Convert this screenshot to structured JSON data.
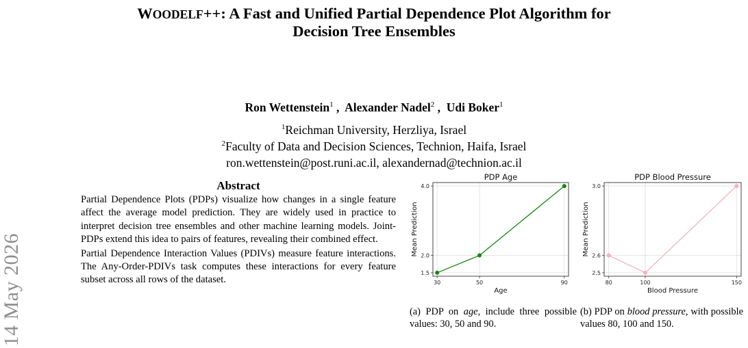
{
  "paper": {
    "title_part1": "W",
    "title_sc": "OODELF",
    "title_part2": "++: A Fast and Unified Partial Dependence Plot Algorithm for",
    "title_line2": "Decision Tree Ensembles",
    "authors": [
      {
        "name": "Ron Wettenstein",
        "aff": "1",
        "sep": " ,  "
      },
      {
        "name": "Alexander Nadel",
        "aff": "2",
        "sep": " ,  "
      },
      {
        "name": "Udi Boker",
        "aff": "1",
        "sep": ""
      }
    ],
    "affiliations": [
      {
        "mark": "1",
        "text": "Reichman University, Herzliya, Israel"
      },
      {
        "mark": "2",
        "text": "Faculty of Data and Decision Sciences, Technion, Haifa, Israel"
      }
    ],
    "emails": "ron.wettenstein@post.runi.ac.il, alexandernad@technion.ac.il",
    "arxiv_stamp": "] 14 May 2026"
  },
  "abstract": {
    "heading": "Abstract",
    "p1": "Partial Dependence Plots (PDPs) visualize how changes in a single feature affect the average model prediction. They are widely used in practice to interpret decision tree ensembles and other machine learning models. Joint-PDPs extend this idea to pairs of features, revealing their combined effect.",
    "p2": "Partial Dependence Interaction Values (PDIVs) measure feature interactions. The Any-Order-PDIVs task computes these interactions for every feature subset across all rows of the dataset."
  },
  "figure": {
    "caption_a": {
      "label": "(a) PDP on ",
      "feature": "age",
      "rest": ", include three possible values: 30, 50 and 90."
    },
    "caption_b": {
      "label": "(b) PDP on ",
      "feature": "blood pressure",
      "rest": ", with possible values 80, 100 and 150."
    }
  },
  "chart_data": [
    {
      "type": "line",
      "title": "PDP Age",
      "xlabel": "Age",
      "ylabel": "Mean Prediction",
      "x": [
        30,
        50,
        90
      ],
      "series": [
        {
          "values": [
            1.5,
            2.0,
            4.0
          ]
        }
      ],
      "xticks": [
        "30",
        "50",
        "90"
      ],
      "yticks": [
        "1.5",
        "2.0",
        "4.0"
      ],
      "xlim": [
        28,
        92
      ],
      "ylim": [
        1.4,
        4.1
      ],
      "grid": true,
      "color": "#118811"
    },
    {
      "type": "line",
      "title": "PDP Blood Pressure",
      "xlabel": "Blood Pressure",
      "ylabel": "Mean Prediction",
      "x": [
        80,
        100,
        150
      ],
      "series": [
        {
          "values": [
            2.6,
            2.5,
            3.0
          ]
        }
      ],
      "xticks": [
        "80",
        "100",
        "150"
      ],
      "yticks": [
        "2.5",
        "2.6",
        "3.0"
      ],
      "xlim": [
        77.5,
        152.5
      ],
      "ylim": [
        2.48,
        3.02
      ],
      "grid": true,
      "color": "#f7b0bd"
    }
  ]
}
